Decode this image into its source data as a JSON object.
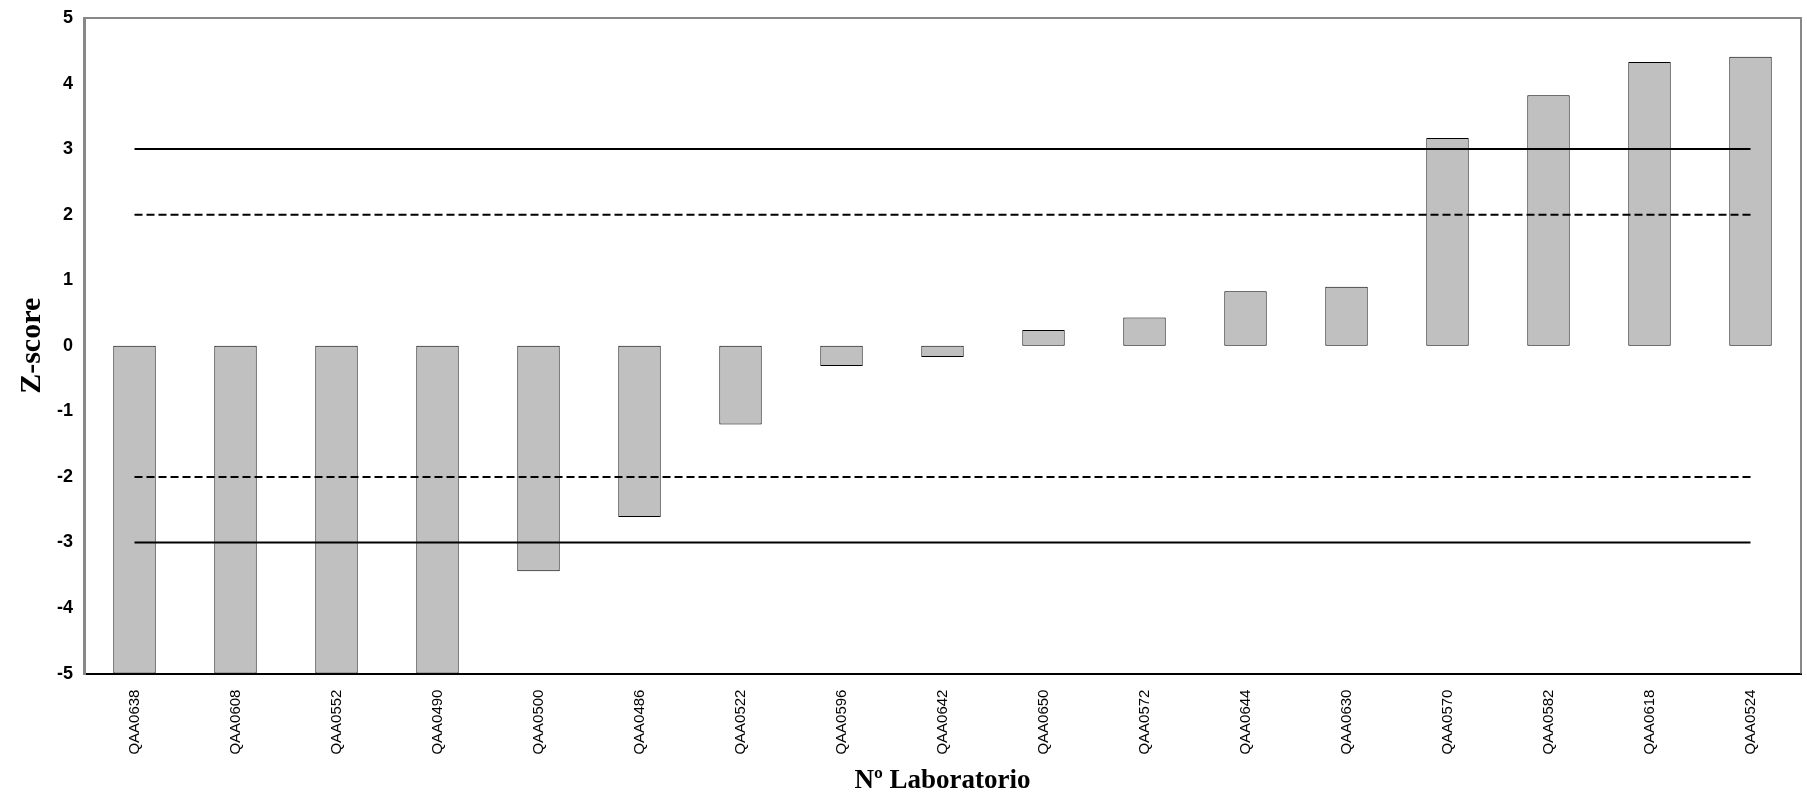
{
  "chart_data": {
    "type": "bar",
    "xlabel": "Nº Laboratorio",
    "ylabel": "Z-score",
    "categories": [
      "QAA0638",
      "QAA0608",
      "QAA0552",
      "QAA0490",
      "QAA0500",
      "QAA0486",
      "QAA0522",
      "QAA0596",
      "QAA0642",
      "QAA0650",
      "QAA0572",
      "QAA0644",
      "QAA0630",
      "QAA0570",
      "QAA0582",
      "QAA0618",
      "QAA0524"
    ],
    "values": [
      -5,
      -5,
      -5,
      -5,
      -3.44,
      -2.61,
      -1.2,
      -0.31,
      -0.17,
      0.24,
      0.43,
      0.83,
      0.9,
      3.17,
      3.82,
      4.33,
      4.41
    ],
    "color": "#c0c0c0",
    "ylim": [
      -5,
      5
    ],
    "yticks": [
      -5,
      -4,
      -3,
      -2,
      -1,
      0,
      1,
      2,
      3,
      4,
      5
    ],
    "grid": false,
    "legend": false,
    "ref_lines": [
      {
        "axis": "y",
        "value": 3,
        "line_style": "solid"
      },
      {
        "axis": "y",
        "value": 2,
        "line_style": "dashed"
      },
      {
        "axis": "y",
        "value": -2,
        "line_style": "dashed"
      },
      {
        "axis": "y",
        "value": -3,
        "line_style": "solid"
      }
    ]
  }
}
